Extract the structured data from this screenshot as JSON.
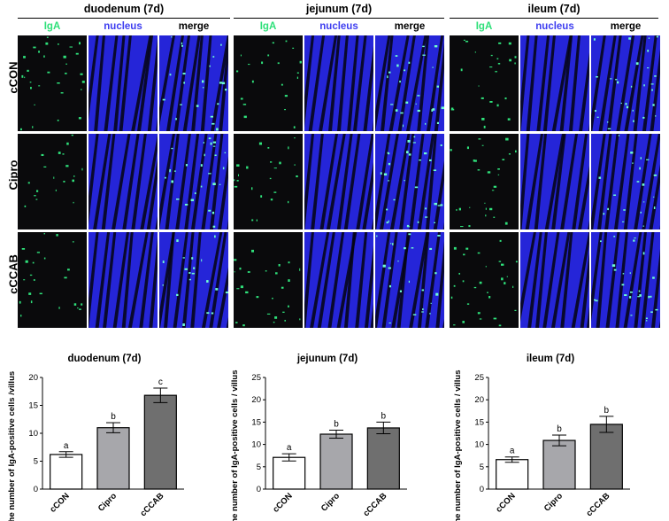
{
  "figure": {
    "segments": [
      "duodenum (7d)",
      "jejunum (7d)",
      "ileum (7d)"
    ],
    "channels": [
      {
        "label": "IgA",
        "color": "#2fe07a"
      },
      {
        "label": "nucleus",
        "color": "#3d3df0"
      },
      {
        "label": "merge",
        "color": "#000000"
      }
    ],
    "rows": [
      "cCON",
      "Cipro",
      "cCCAB"
    ]
  },
  "chart_data": [
    {
      "type": "bar",
      "title": "duodenum (7d)",
      "ylabel": "The number of IgA-positive cells /villus",
      "categories": [
        "cCON",
        "Cipro",
        "cCCAB"
      ],
      "values": [
        6.2,
        11.0,
        16.8
      ],
      "errors": [
        0.5,
        0.9,
        1.3
      ],
      "letters": [
        "a",
        "b",
        "c"
      ],
      "colors": [
        "#ffffff",
        "#a7a7ab",
        "#6f6f6f"
      ],
      "ylim": [
        0,
        20
      ],
      "yticks": [
        "0",
        "5",
        "10",
        "15",
        "20"
      ]
    },
    {
      "type": "bar",
      "title": "jejunum (7d)",
      "ylabel": "The number of IgA-positive cells / villus",
      "categories": [
        "cCON",
        "Cipro",
        "cCCAB"
      ],
      "values": [
        7.1,
        12.3,
        13.7
      ],
      "errors": [
        0.8,
        0.9,
        1.3
      ],
      "letters": [
        "a",
        "b",
        "b"
      ],
      "colors": [
        "#ffffff",
        "#a7a7ab",
        "#6f6f6f"
      ],
      "ylim": [
        0,
        25
      ],
      "yticks": [
        "0",
        "5",
        "10",
        "15",
        "20",
        "25"
      ]
    },
    {
      "type": "bar",
      "title": "ileum (7d)",
      "ylabel": "The number of IgA-positive cells / villus",
      "categories": [
        "cCON",
        "Cipro",
        "cCCAB"
      ],
      "values": [
        6.6,
        10.9,
        14.5
      ],
      "errors": [
        0.6,
        1.2,
        1.8
      ],
      "letters": [
        "a",
        "b",
        "b"
      ],
      "colors": [
        "#ffffff",
        "#a7a7ab",
        "#6f6f6f"
      ],
      "ylim": [
        0,
        25
      ],
      "yticks": [
        "0",
        "5",
        "10",
        "15",
        "20",
        "25"
      ]
    }
  ]
}
